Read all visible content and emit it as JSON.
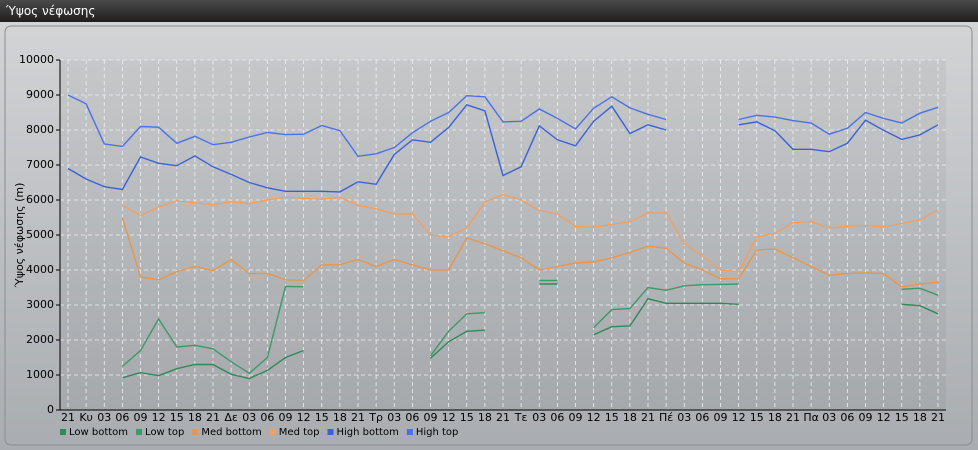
{
  "header": {
    "title": "Ύψος νέφωσης"
  },
  "chart_data": {
    "type": "line",
    "y_label": "Ύψος νέφωσης (m)",
    "categories": [
      "21",
      "Κυ",
      "03",
      "06",
      "09",
      "12",
      "15",
      "18",
      "21",
      "Δε",
      "03",
      "06",
      "09",
      "12",
      "15",
      "18",
      "21",
      "Τρ",
      "03",
      "06",
      "09",
      "12",
      "15",
      "18",
      "21",
      "Τε",
      "03",
      "06",
      "09",
      "12",
      "15",
      "18",
      "21",
      "Πέ",
      "03",
      "06",
      "09",
      "12",
      "15",
      "18",
      "21",
      "Πα",
      "03",
      "06",
      "09",
      "12",
      "15",
      "18",
      "21"
    ],
    "ylim": [
      0,
      10000
    ],
    "yticks": [
      0,
      1000,
      2000,
      3000,
      4000,
      5000,
      6000,
      7000,
      8000,
      9000,
      10000
    ],
    "grid": true,
    "series": [
      {
        "name": "Low bottom",
        "color": "#2e8b57",
        "values": [
          null,
          null,
          null,
          920,
          1070,
          980,
          1180,
          1300,
          1300,
          1020,
          900,
          1130,
          1500,
          1700,
          null,
          null,
          null,
          null,
          null,
          null,
          1480,
          1950,
          2250,
          2280,
          null,
          null,
          3600,
          3600,
          null,
          2150,
          2380,
          2400,
          3180,
          3050,
          3050,
          3050,
          3050,
          3020,
          null,
          null,
          null,
          null,
          null,
          null,
          null,
          null,
          3020,
          2980,
          2750
        ]
      },
      {
        "name": "Low top",
        "color": "#3a9a6a",
        "values": [
          null,
          null,
          null,
          1250,
          1700,
          2600,
          1800,
          1850,
          1750,
          1380,
          1050,
          1500,
          3530,
          3520,
          null,
          null,
          null,
          null,
          null,
          null,
          1550,
          2250,
          2750,
          2780,
          null,
          null,
          3700,
          3700,
          null,
          2350,
          2870,
          2900,
          3500,
          3420,
          3550,
          3580,
          3590,
          3600,
          null,
          null,
          null,
          null,
          null,
          null,
          null,
          null,
          3450,
          3480,
          3280
        ]
      },
      {
        "name": "Med bottom",
        "color": "#e8964a",
        "values": [
          null,
          null,
          null,
          5500,
          3800,
          3720,
          3950,
          4100,
          3980,
          4300,
          3900,
          3900,
          3720,
          3700,
          4150,
          4150,
          4300,
          4100,
          4300,
          4150,
          4000,
          4000,
          4920,
          4750,
          4550,
          4350,
          4000,
          4100,
          4200,
          4230,
          4350,
          4500,
          4680,
          4620,
          4200,
          4000,
          3750,
          3750,
          4570,
          4600,
          4350,
          4100,
          3850,
          3900,
          3920,
          3900,
          3520,
          3600,
          3650
        ]
      },
      {
        "name": "Med top",
        "color": "#f0a060",
        "values": [
          null,
          null,
          null,
          5850,
          5550,
          5800,
          5980,
          5920,
          5870,
          5950,
          5900,
          6000,
          6080,
          6050,
          6020,
          6080,
          5850,
          5750,
          5600,
          5600,
          5000,
          4950,
          5200,
          5950,
          6150,
          6000,
          5700,
          5600,
          5250,
          5220,
          5300,
          5380,
          5630,
          5630,
          4750,
          4400,
          4000,
          3950,
          4950,
          5050,
          5350,
          5380,
          5200,
          5250,
          5270,
          5230,
          5330,
          5430,
          5720
        ]
      },
      {
        "name": "High bottom",
        "color": "#3a62d8",
        "values": [
          6900,
          6600,
          6380,
          6300,
          7230,
          7050,
          6980,
          7260,
          6950,
          6730,
          6500,
          6350,
          6250,
          6250,
          6250,
          6230,
          6520,
          6450,
          7300,
          7720,
          7650,
          8070,
          8720,
          8550,
          6700,
          6950,
          8120,
          7720,
          7550,
          8250,
          8680,
          7900,
          8150,
          8000,
          null,
          null,
          null,
          8150,
          8230,
          7980,
          7450,
          7450,
          7380,
          7620,
          8280,
          7990,
          7730,
          7860,
          8150
        ]
      },
      {
        "name": "High top",
        "color": "#4a72e6",
        "values": [
          9000,
          8750,
          7600,
          7530,
          8100,
          8080,
          7620,
          7820,
          7580,
          7650,
          7800,
          7930,
          7870,
          7880,
          8130,
          7980,
          7250,
          7320,
          7500,
          7920,
          8250,
          8500,
          8980,
          8950,
          8230,
          8250,
          8600,
          8330,
          8030,
          8620,
          8950,
          8630,
          8450,
          8300,
          null,
          null,
          null,
          8300,
          8420,
          8370,
          8270,
          8200,
          7880,
          8050,
          8500,
          8330,
          8200,
          8480,
          8650
        ]
      }
    ]
  }
}
